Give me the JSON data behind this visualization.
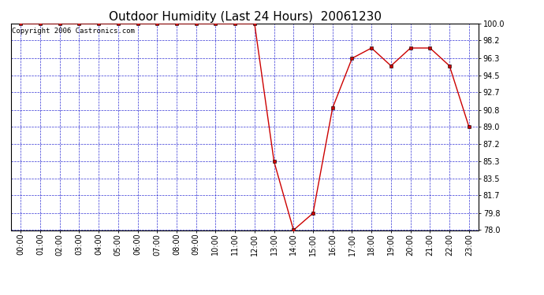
{
  "title": "Outdoor Humidity (Last 24 Hours)  20061230",
  "copyright_text": "Copyright 2006 Castronics.com",
  "x_labels": [
    "00:00",
    "01:00",
    "02:00",
    "03:00",
    "04:00",
    "05:00",
    "06:00",
    "07:00",
    "08:00",
    "09:00",
    "10:00",
    "11:00",
    "12:00",
    "13:00",
    "14:00",
    "15:00",
    "16:00",
    "17:00",
    "18:00",
    "19:00",
    "20:00",
    "21:00",
    "22:00",
    "23:00"
  ],
  "x_values": [
    0,
    1,
    2,
    3,
    4,
    5,
    6,
    7,
    8,
    9,
    10,
    11,
    12,
    13,
    14,
    15,
    16,
    17,
    18,
    19,
    20,
    21,
    22,
    23
  ],
  "y_values": [
    100.0,
    100.0,
    100.0,
    100.0,
    100.0,
    100.0,
    100.0,
    100.0,
    100.0,
    100.0,
    100.0,
    100.0,
    100.0,
    85.3,
    78.0,
    79.8,
    91.0,
    96.3,
    97.4,
    95.5,
    97.4,
    97.4,
    95.5,
    89.0
  ],
  "y_ticks": [
    78.0,
    79.8,
    81.7,
    83.5,
    85.3,
    87.2,
    89.0,
    90.8,
    92.7,
    94.5,
    96.3,
    98.2,
    100.0
  ],
  "ylim_min": 78.0,
  "ylim_max": 100.0,
  "line_color": "#cc0000",
  "marker_color": "#cc0000",
  "marker_edge_color": "#000000",
  "background_color": "#ffffff",
  "grid_color": "#0000cc",
  "title_fontsize": 11,
  "tick_fontsize": 7,
  "copyright_fontsize": 6.5,
  "fig_width": 6.9,
  "fig_height": 3.75,
  "dpi": 100
}
